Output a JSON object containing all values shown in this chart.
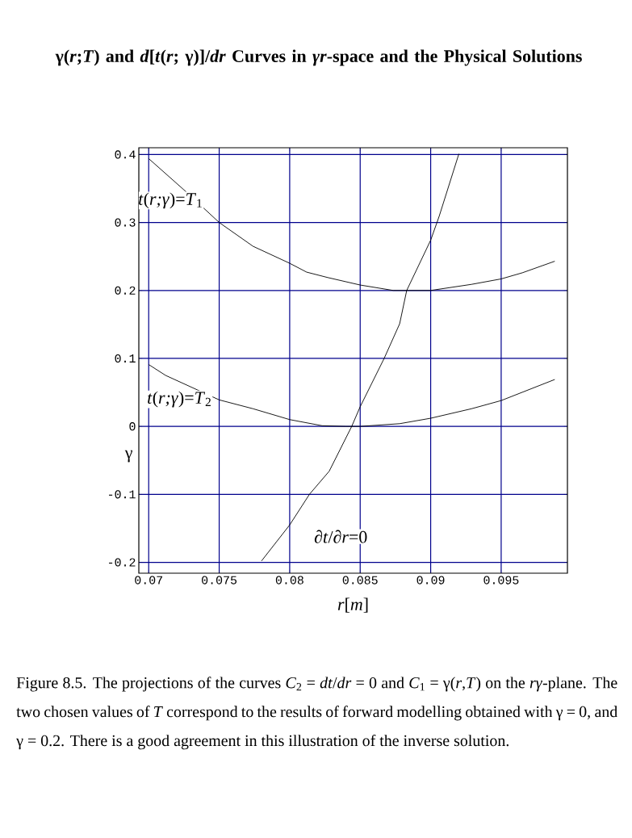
{
  "chart_data": {
    "type": "line",
    "title": "γ(*r*;*T*) and *d*[*t*(*r*; γ)]/*dr* Curves in *γr*-space and the Physical Solutions",
    "xlabel": "*r*[*m*]",
    "ylabel": "γ",
    "series": [
      {
        "name": "*t*(*r;γ*)=*T*$_{1}$",
        "color": "#000000",
        "x": [
          0.07,
          0.0725,
          0.075,
          0.0774,
          0.08,
          0.0812,
          0.0827,
          0.085,
          0.08735,
          0.09,
          0.0929,
          0.095,
          0.0965,
          0.0988
        ],
        "values": [
          0.394,
          0.348,
          0.3,
          0.265,
          0.24,
          0.227,
          0.219,
          0.208,
          0.2,
          0.2,
          0.209,
          0.217,
          0.226,
          0.243
        ]
      },
      {
        "name": "*t*(*r;γ*)=*T*$_{2}$",
        "color": "#000000",
        "x": [
          0.07,
          0.0712,
          0.075,
          0.0774,
          0.08,
          0.0823,
          0.084,
          0.085,
          0.0878,
          0.09,
          0.0929,
          0.095,
          0.0988
        ],
        "values": [
          0.091,
          0.075,
          0.039,
          0.026,
          0.01,
          0.001,
          0.0,
          0.0,
          0.004,
          0.012,
          0.026,
          0.038,
          0.069
        ]
      },
      {
        "name": "∂*t*/∂*r*=0",
        "color": "#000000",
        "x": [
          0.078,
          0.08,
          0.0814,
          0.0828,
          0.0844,
          0.085,
          0.0867,
          0.0878,
          0.0883,
          0.09,
          0.0906,
          0.092
        ],
        "values": [
          -0.198,
          -0.145,
          -0.1,
          -0.066,
          0.0,
          0.029,
          0.1,
          0.151,
          0.2,
          0.274,
          0.309,
          0.401
        ]
      }
    ],
    "xlim": [
      0.0693,
      0.0997
    ],
    "ylim": [
      -0.216,
      0.41
    ],
    "xticks": [
      0.07,
      0.075,
      0.08,
      0.085,
      0.09,
      0.095
    ],
    "yticks": [
      -0.2,
      -0.1,
      0,
      0.1,
      0.2,
      0.3,
      0.4
    ],
    "grid": true,
    "annotations": [
      "Figure 8.5. The projections of the curves *C*$_{2}$ = *dt*/*dr* = 0 and *C*$_{1}$ = γ(*r*,*T*) on the *rγ*-plane. The two chosen values of *T* correspond to the results of forward modelling obtained with γ = 0, and γ = 0.2. There is a good agreement in this illustration of the inverse solution."
    ]
  }
}
